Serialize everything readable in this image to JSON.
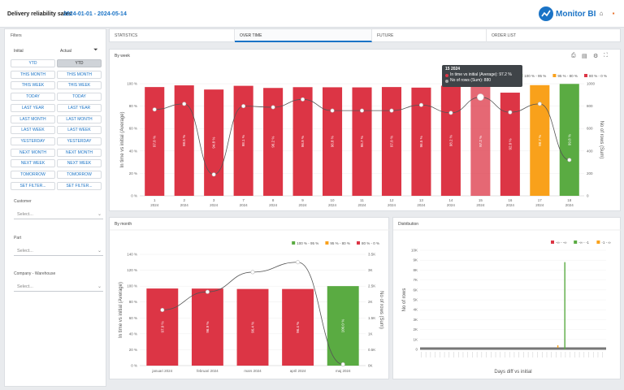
{
  "header": {
    "title": "Delivery reliability sales",
    "date_range": "2024-01-01 - 2024-05-14",
    "brand": "Monitor BI",
    "icons": [
      "home-icon",
      "grid-icon"
    ]
  },
  "filters": {
    "title": "Filters",
    "col_initial": "Initial",
    "col_actual": "Actual",
    "initial_buttons": [
      "YTD",
      "THIS MONTH",
      "THIS WEEK",
      "TODAY",
      "LAST YEAR",
      "LAST MONTH",
      "LAST WEEK",
      "YESTERDAY",
      "NEXT MONTH",
      "NEXT WEEK",
      "TOMORROW",
      "SET FILTER..."
    ],
    "actual_buttons": [
      "YTD",
      "THIS MONTH",
      "THIS WEEK",
      "TODAY",
      "LAST YEAR",
      "LAST MONTH",
      "LAST WEEK",
      "YESTERDAY",
      "NEXT MONTH",
      "NEXT WEEK",
      "TOMORROW",
      "SET FILTER..."
    ],
    "customer_label": "Customer",
    "customer_placeholder": "Select...",
    "part_label": "Part",
    "part_placeholder": "Select...",
    "company_label": "Company - Warehouse",
    "company_placeholder": "Select..."
  },
  "tabs": [
    "STATISTICS",
    "OVER TIME",
    "FUTURE",
    "ORDER LIST"
  ],
  "panels": {
    "week_title": "By week",
    "month_title": "By month",
    "dist_title": "Distribution"
  },
  "tooltip": {
    "title": "15 2024",
    "line1": "In time vs initial (Average): 97.2 %",
    "line2": "No of rows (Sum): 880"
  },
  "colors": {
    "red": "#dc3545",
    "orange": "#f9a11b",
    "green": "#5aab42",
    "accent": "#1a73c6"
  },
  "chart_data": [
    {
      "type": "bar",
      "title": "By week",
      "legend": [
        "100 % - 95 %",
        "95 % - 80 %",
        "80 % - 0 %"
      ],
      "legend_colors": [
        "#5aab42",
        "#f9a11b",
        "#dc3545"
      ],
      "categories": [
        "1\n2024",
        "2\n2024",
        "3\n2024",
        "7\n2024",
        "8\n2024",
        "9\n2024",
        "10\n2024",
        "11\n2024",
        "12\n2024",
        "13\n2024",
        "14\n2024",
        "15\n2024",
        "16\n2024",
        "17\n2024",
        "18\n2024"
      ],
      "xtick_top": [
        "1",
        "2",
        "3",
        "7",
        "8",
        "9",
        "10",
        "11",
        "12",
        "13",
        "14",
        "15",
        "16",
        "17",
        "18"
      ],
      "xtick_bottom": "2024",
      "bar_labels": [
        "97.0 %",
        "98.5 %",
        "94.8 %",
        "98.1 %",
        "96.2 %",
        "96.9 %",
        "96.8 %",
        "96.7 %",
        "97.0 %",
        "96.5 %",
        "98.2 %",
        "97.2 %",
        "92.0 %",
        "98.7 %",
        "99.8 %"
      ],
      "series": [
        {
          "name": "In time vs initial (Average)",
          "values": [
            97.0,
            98.5,
            94.8,
            98.1,
            96.2,
            96.9,
            96.8,
            96.7,
            97.0,
            96.5,
            98.2,
            97.2,
            92.0,
            98.7,
            99.8
          ],
          "colors": [
            "red",
            "red",
            "red",
            "red",
            "red",
            "red",
            "red",
            "red",
            "red",
            "red",
            "red",
            "red",
            "red",
            "orange",
            "green"
          ]
        },
        {
          "name": "No of rows (Sum)",
          "values": [
            770,
            820,
            190,
            800,
            790,
            860,
            760,
            760,
            760,
            810,
            740,
            880,
            745,
            820,
            320
          ]
        }
      ],
      "ylabel": "In time vs initial (Average)",
      "y2label": "No of rows (Sum)",
      "yticks": [
        "0 %",
        "20 %",
        "40 %",
        "60 %",
        "80 %",
        "100 %"
      ],
      "y2ticks": [
        "0",
        "200",
        "400",
        "600",
        "800",
        "1000"
      ],
      "ylim": [
        0,
        100
      ],
      "y2lim": [
        0,
        1000
      ]
    },
    {
      "type": "bar",
      "title": "By month",
      "legend": [
        "100 % - 95 %",
        "95 % - 80 %",
        "80 % - 0 %"
      ],
      "legend_colors": [
        "#5aab42",
        "#f9a11b",
        "#dc3545"
      ],
      "categories": [
        "januari 2024",
        "februari 2024",
        "mars 2024",
        "april 2024",
        "maj 2024"
      ],
      "bar_labels": [
        "97.0 %",
        "96.9 %",
        "96.4 %",
        "96.4 %",
        "100.0 %"
      ],
      "series": [
        {
          "name": "In time vs initial (Average)",
          "values": [
            97.0,
            96.9,
            96.4,
            96.4,
            100.0
          ],
          "colors": [
            "red",
            "red",
            "red",
            "red",
            "green"
          ]
        },
        {
          "name": "No of rows (Sum)",
          "values": [
            1750,
            2320,
            2940,
            3250,
            40
          ]
        }
      ],
      "ylabel": "In time vs initial (Average)",
      "y2label": "No of rows (Sum)",
      "yticks": [
        "0 %",
        "20 %",
        "40 %",
        "60 %",
        "80 %",
        "100 %",
        "120 %",
        "140 %"
      ],
      "y2ticks": [
        "0K",
        "0.5K",
        "1K",
        "1.5K",
        "2K",
        "2.5K",
        "3K",
        "3.5K"
      ],
      "ylim": [
        0,
        140
      ],
      "y2lim": [
        0,
        3500
      ]
    },
    {
      "type": "bar",
      "title": "Distribution",
      "legend": [
        "-∞ - -∞",
        "-∞ - -1",
        "-1 - ∞"
      ],
      "legend_colors": [
        "#dc3545",
        "#5aab42",
        "#f9a11b"
      ],
      "xlabel": "Days diff vs initial",
      "ylabel": "No of rows",
      "yticks": [
        "0",
        "1K",
        "2K",
        "3K",
        "4K",
        "5K",
        "6K",
        "7K",
        "8K",
        "9K",
        "10K"
      ],
      "ylim": [
        0,
        10000
      ],
      "spike_index": 62,
      "spike_value": 8800,
      "orange_index": 59,
      "orange_value": 250
    }
  ]
}
